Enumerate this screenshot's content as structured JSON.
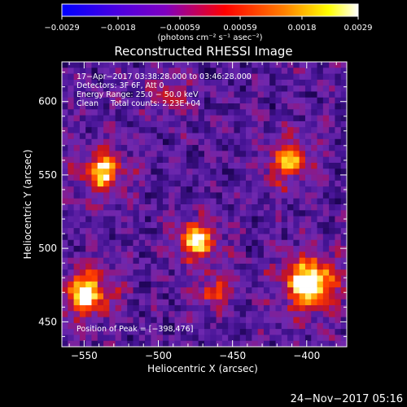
{
  "chart_data": {
    "type": "heatmap",
    "title": "Reconstructed RHESSI Image",
    "xlabel": "Heliocentric X (arcsec)",
    "ylabel": "Heliocentric Y (arcsec)",
    "xlim": [
      -565,
      -373
    ],
    "ylim": [
      433,
      627
    ],
    "x_ticks": [
      -550,
      -500,
      -450,
      -400
    ],
    "x_tick_labels": [
      "−550",
      "−500",
      "−450",
      "−400"
    ],
    "y_ticks": [
      450,
      500,
      550,
      600
    ],
    "y_tick_labels": [
      "450",
      "500",
      "550",
      "600"
    ],
    "colorbar": {
      "range": [
        -0.0029,
        0.0029
      ],
      "ticks": [
        -0.0029,
        -0.0018,
        -0.00059,
        0.00059,
        0.0018,
        0.0029
      ],
      "tick_labels": [
        "−0.0029",
        "−0.0018",
        "−0.00059",
        "0.00059",
        "0.0018",
        "0.0029"
      ],
      "units_label": "(photons cm⁻² s⁻¹ asec⁻²)",
      "colors": [
        "#0000ff",
        "#8000c0",
        "#ff0000",
        "#ff8000",
        "#ffff00",
        "#ffffff"
      ]
    },
    "annotations": [
      "17−Apr−2017 03:38:28.000 to 03:46:28.000",
      "Detectors: 3F 6F, Att 0",
      "Energy Range: 25.0 − 50.0 keV",
      "Clean     Total counts: 2.23E+04"
    ],
    "peak_label": "Position of Peak = [−398,476]",
    "sources": [
      {
        "x": -398,
        "y": 476,
        "strength": 1.0,
        "spread": 14
      },
      {
        "x": -549,
        "y": 469,
        "strength": 0.82,
        "spread": 13
      },
      {
        "x": -537,
        "y": 552,
        "strength": 0.72,
        "spread": 12
      },
      {
        "x": -474,
        "y": 505,
        "strength": 0.78,
        "spread": 11
      },
      {
        "x": -412,
        "y": 560,
        "strength": 0.6,
        "spread": 12
      },
      {
        "x": -462,
        "y": 470,
        "strength": 0.45,
        "spread": 9
      },
      {
        "x": -492,
        "y": 605,
        "strength": 0.35,
        "spread": 10
      }
    ],
    "grid": false
  },
  "footer": {
    "timestamp": "24−Nov−2017 05:16"
  }
}
